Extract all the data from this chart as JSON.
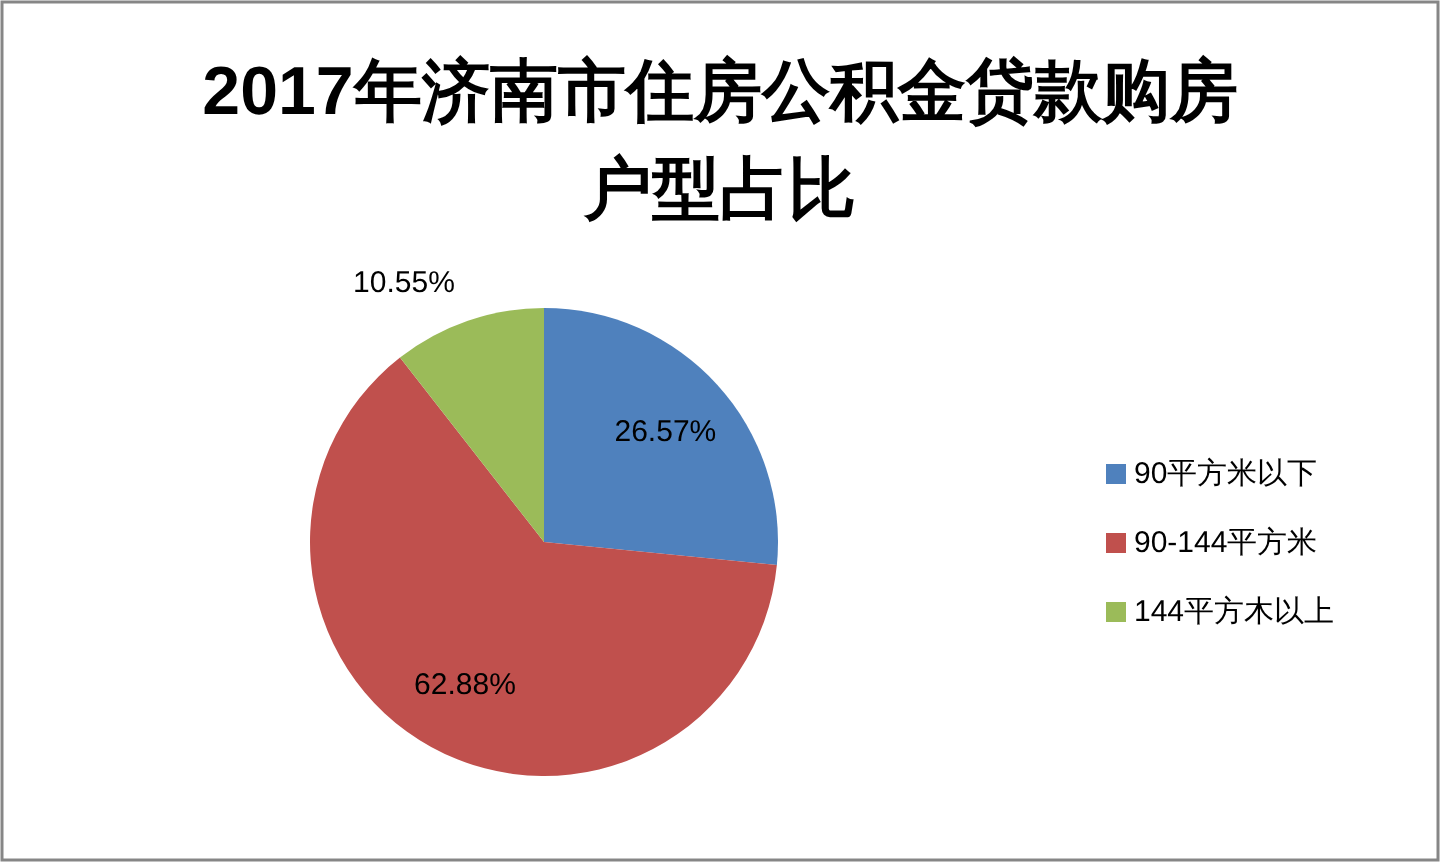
{
  "chart_data": {
    "type": "pie",
    "title": "2017年济南市住房公积金贷款购房户型占比",
    "categories": [
      "90平方米以下",
      "90-144平方米",
      "144平方木以上"
    ],
    "values": [
      26.57,
      62.88,
      10.55
    ],
    "colors": [
      "#4f81bd",
      "#c0504d",
      "#9bbb59"
    ],
    "value_labels": [
      "26.57%",
      "62.88%",
      "10.55%"
    ],
    "legend": "right"
  }
}
